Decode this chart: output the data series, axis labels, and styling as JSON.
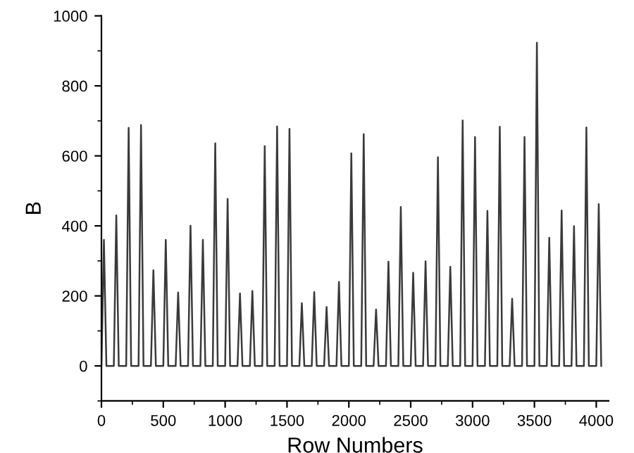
{
  "chart_data": {
    "type": "line",
    "xlabel": "Row Numbers",
    "ylabel": "B",
    "xlim": [
      0,
      4100
    ],
    "xticks": [
      0,
      500,
      1000,
      1500,
      2000,
      2500,
      3000,
      3500,
      4000
    ],
    "ylim": [
      -100,
      1000
    ],
    "yticks": [
      0,
      200,
      400,
      600,
      800,
      1000
    ],
    "grid": false,
    "legend": false,
    "marker": "none",
    "line_style": "solid",
    "series": [
      {
        "color": "#3a3a3a",
        "x": [
          0,
          20,
          40,
          100,
          120,
          140,
          200,
          220,
          240,
          300,
          320,
          340,
          400,
          420,
          440,
          500,
          520,
          540,
          600,
          620,
          640,
          700,
          720,
          740,
          800,
          820,
          840,
          900,
          920,
          940,
          1000,
          1020,
          1040,
          1100,
          1120,
          1140,
          1200,
          1220,
          1240,
          1300,
          1320,
          1340,
          1400,
          1420,
          1440,
          1500,
          1520,
          1540,
          1600,
          1620,
          1640,
          1700,
          1720,
          1740,
          1800,
          1820,
          1840,
          1900,
          1920,
          1940,
          2000,
          2020,
          2040,
          2100,
          2120,
          2140,
          2200,
          2220,
          2240,
          2300,
          2320,
          2340,
          2400,
          2420,
          2440,
          2500,
          2520,
          2540,
          2600,
          2620,
          2640,
          2700,
          2720,
          2740,
          2800,
          2820,
          2840,
          2900,
          2920,
          2940,
          3000,
          3020,
          3040,
          3100,
          3120,
          3140,
          3200,
          3220,
          3240,
          3300,
          3320,
          3340,
          3400,
          3420,
          3440,
          3500,
          3520,
          3540,
          3600,
          3620,
          3640,
          3700,
          3720,
          3740,
          3800,
          3820,
          3840,
          3900,
          3920,
          3940,
          4000,
          4020,
          4040
        ],
        "values": [
          0,
          360,
          0,
          0,
          430,
          0,
          0,
          680,
          0,
          0,
          688,
          0,
          0,
          273,
          0,
          0,
          360,
          0,
          0,
          210,
          0,
          0,
          400,
          0,
          0,
          360,
          0,
          0,
          636,
          0,
          0,
          477,
          0,
          0,
          207,
          0,
          0,
          214,
          0,
          0,
          628,
          0,
          0,
          684,
          0,
          0,
          677,
          0,
          0,
          179,
          0,
          0,
          211,
          0,
          0,
          168,
          0,
          0,
          240,
          0,
          0,
          607,
          0,
          0,
          662,
          0,
          0,
          161,
          0,
          0,
          298,
          0,
          0,
          454,
          0,
          0,
          266,
          0,
          0,
          299,
          0,
          0,
          596,
          0,
          0,
          283,
          0,
          0,
          701,
          0,
          0,
          654,
          0,
          0,
          443,
          0,
          0,
          683,
          0,
          0,
          192,
          0,
          0,
          654,
          0,
          0,
          923,
          0,
          0,
          366,
          0,
          0,
          444,
          0,
          0,
          399,
          0,
          0,
          681,
          0,
          0,
          462,
          0
        ]
      }
    ]
  }
}
